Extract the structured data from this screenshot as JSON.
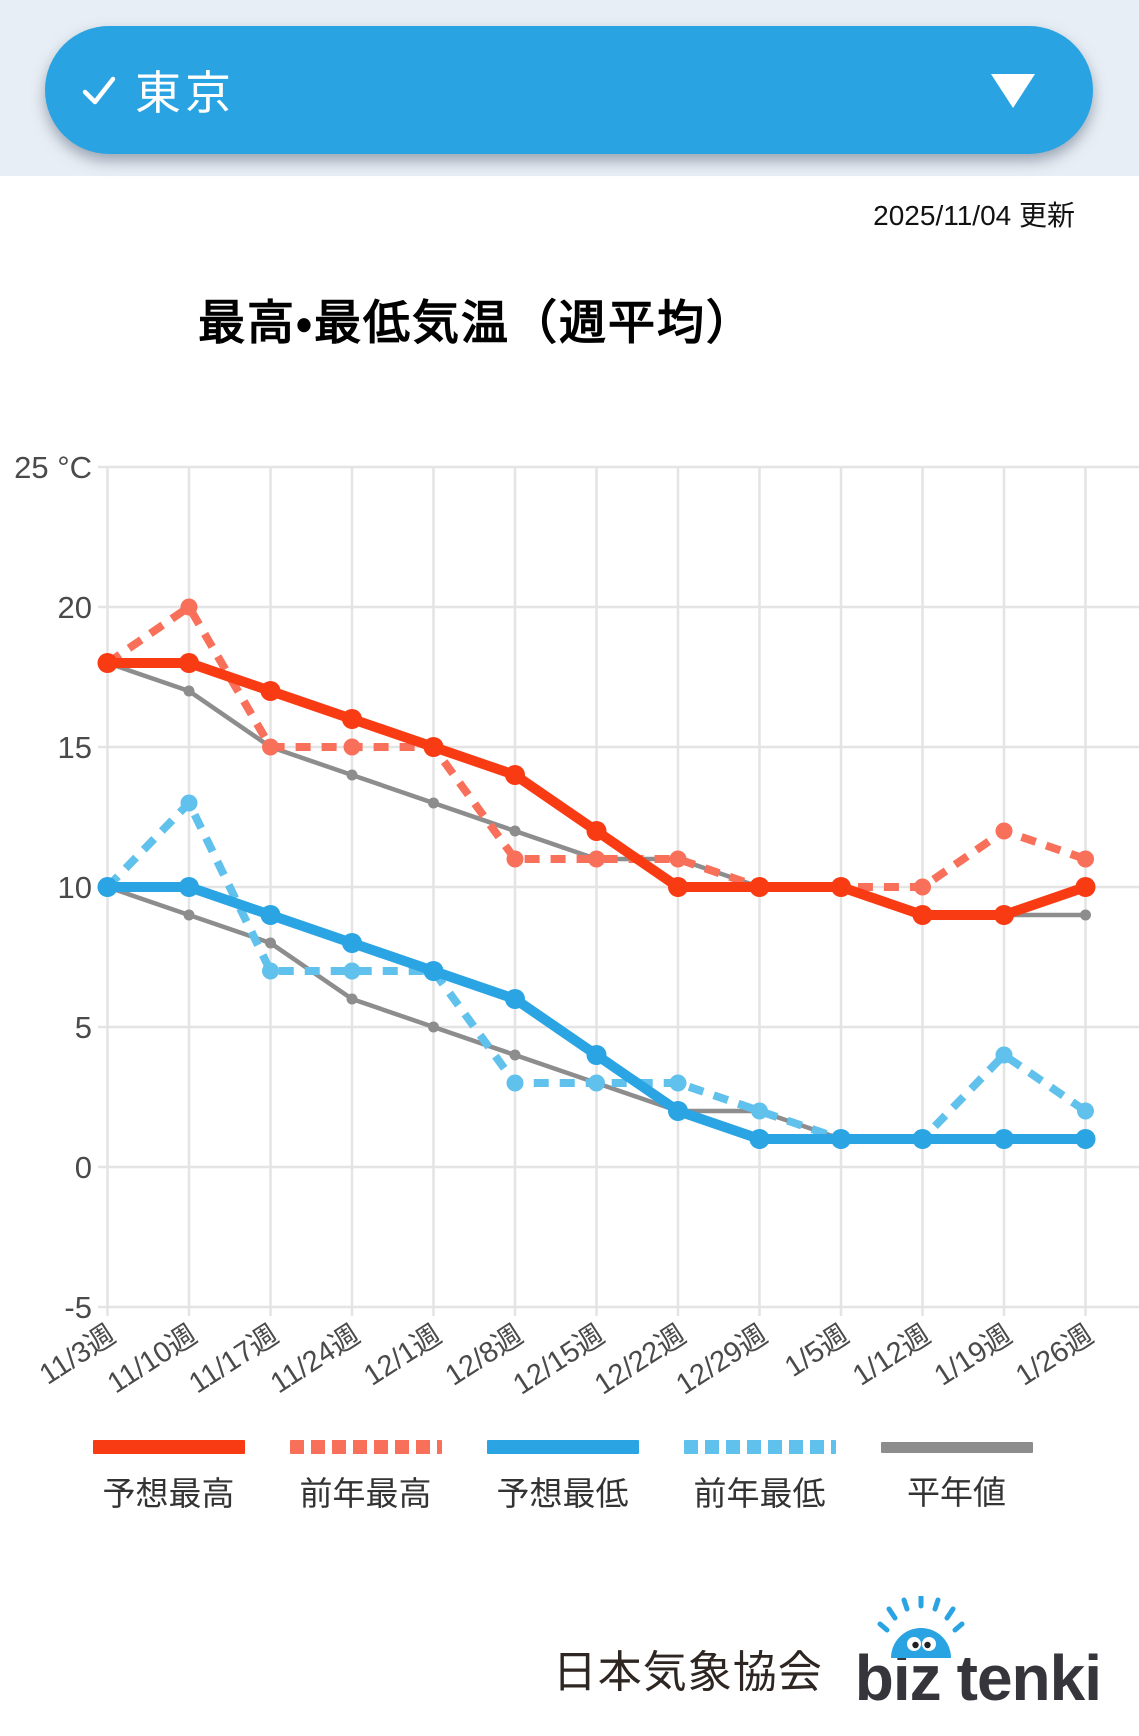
{
  "header": {
    "region_label": "東京"
  },
  "update_text": "2025/11/04 更新",
  "chart_title": "最高・最低気温（週平均）",
  "edge_fragment": "(",
  "chart_data": {
    "type": "line",
    "categories": [
      "11/3週",
      "11/10週",
      "11/17週",
      "11/24週",
      "12/1週",
      "12/8週",
      "12/15週",
      "12/22週",
      "12/29週",
      "1/5週",
      "1/12週",
      "1/19週",
      "1/26週"
    ],
    "y_axis": {
      "min": -5,
      "max": 25,
      "step": 5,
      "ticks": [
        {
          "value": 25,
          "label": "25 °C"
        },
        {
          "value": 20,
          "label": "20"
        },
        {
          "value": 15,
          "label": "15"
        },
        {
          "value": 10,
          "label": "10"
        },
        {
          "value": 5,
          "label": "5"
        },
        {
          "value": 0,
          "label": "0"
        },
        {
          "value": -5,
          "label": "-5"
        }
      ]
    },
    "grid": true,
    "legend_position": "bottom",
    "series": [
      {
        "key": "normal-max",
        "name": "平年値",
        "color": "#8D8D8D",
        "line": "solid",
        "width": 4.5,
        "marker": 5.5,
        "values": [
          18,
          17,
          15,
          14,
          13,
          12,
          11,
          11,
          10,
          10,
          9,
          9,
          9
        ]
      },
      {
        "key": "normal-min",
        "name": "平年値",
        "color": "#8D8D8D",
        "line": "solid",
        "width": 4.5,
        "marker": 5.5,
        "values": [
          10,
          9,
          8,
          6,
          5,
          4,
          3,
          2,
          2,
          1,
          1,
          1,
          1
        ]
      },
      {
        "key": "prev-year-max",
        "name": "前年最高",
        "color": "#F9705A",
        "line": "dashed",
        "width": 8,
        "marker": 8.5,
        "values": [
          18,
          20,
          15,
          15,
          15,
          11,
          11,
          11,
          10,
          10,
          10,
          12,
          11
        ]
      },
      {
        "key": "prev-year-min",
        "name": "前年最低",
        "color": "#60C1EC",
        "line": "dashed",
        "width": 8,
        "marker": 8.5,
        "values": [
          10,
          13,
          7,
          7,
          7,
          3,
          3,
          3,
          2,
          1,
          1,
          4,
          2
        ]
      },
      {
        "key": "forecast-max",
        "name": "予想最高",
        "color": "#F93B14",
        "line": "solid",
        "width": 10,
        "marker": 10,
        "values": [
          18,
          18,
          17,
          16,
          15,
          14,
          12,
          10,
          10,
          10,
          9,
          9,
          10
        ]
      },
      {
        "key": "forecast-min",
        "name": "予想最低",
        "color": "#2AA4E3",
        "line": "solid",
        "width": 10,
        "marker": 10,
        "values": [
          10,
          10,
          9,
          8,
          7,
          6,
          4,
          2,
          1,
          1,
          1,
          1,
          1
        ]
      }
    ],
    "legend": [
      {
        "label": "予想最高",
        "color": "#F93B14",
        "style": "solid"
      },
      {
        "label": "前年最高",
        "color": "#F9705A",
        "style": "dashed"
      },
      {
        "label": "予想最低",
        "color": "#2AA4E3",
        "style": "solid"
      },
      {
        "label": "前年最低",
        "color": "#60C1EC",
        "style": "dashed"
      },
      {
        "label": "平年値",
        "color": "#8D8D8D",
        "style": "thin"
      }
    ],
    "colors": {
      "grid": "#E4E4E4",
      "axis_text": "#4A4A4A"
    }
  },
  "footer": {
    "org": "日本気象協会",
    "logo_biz": "biz",
    "logo_tenki": "tenki"
  }
}
